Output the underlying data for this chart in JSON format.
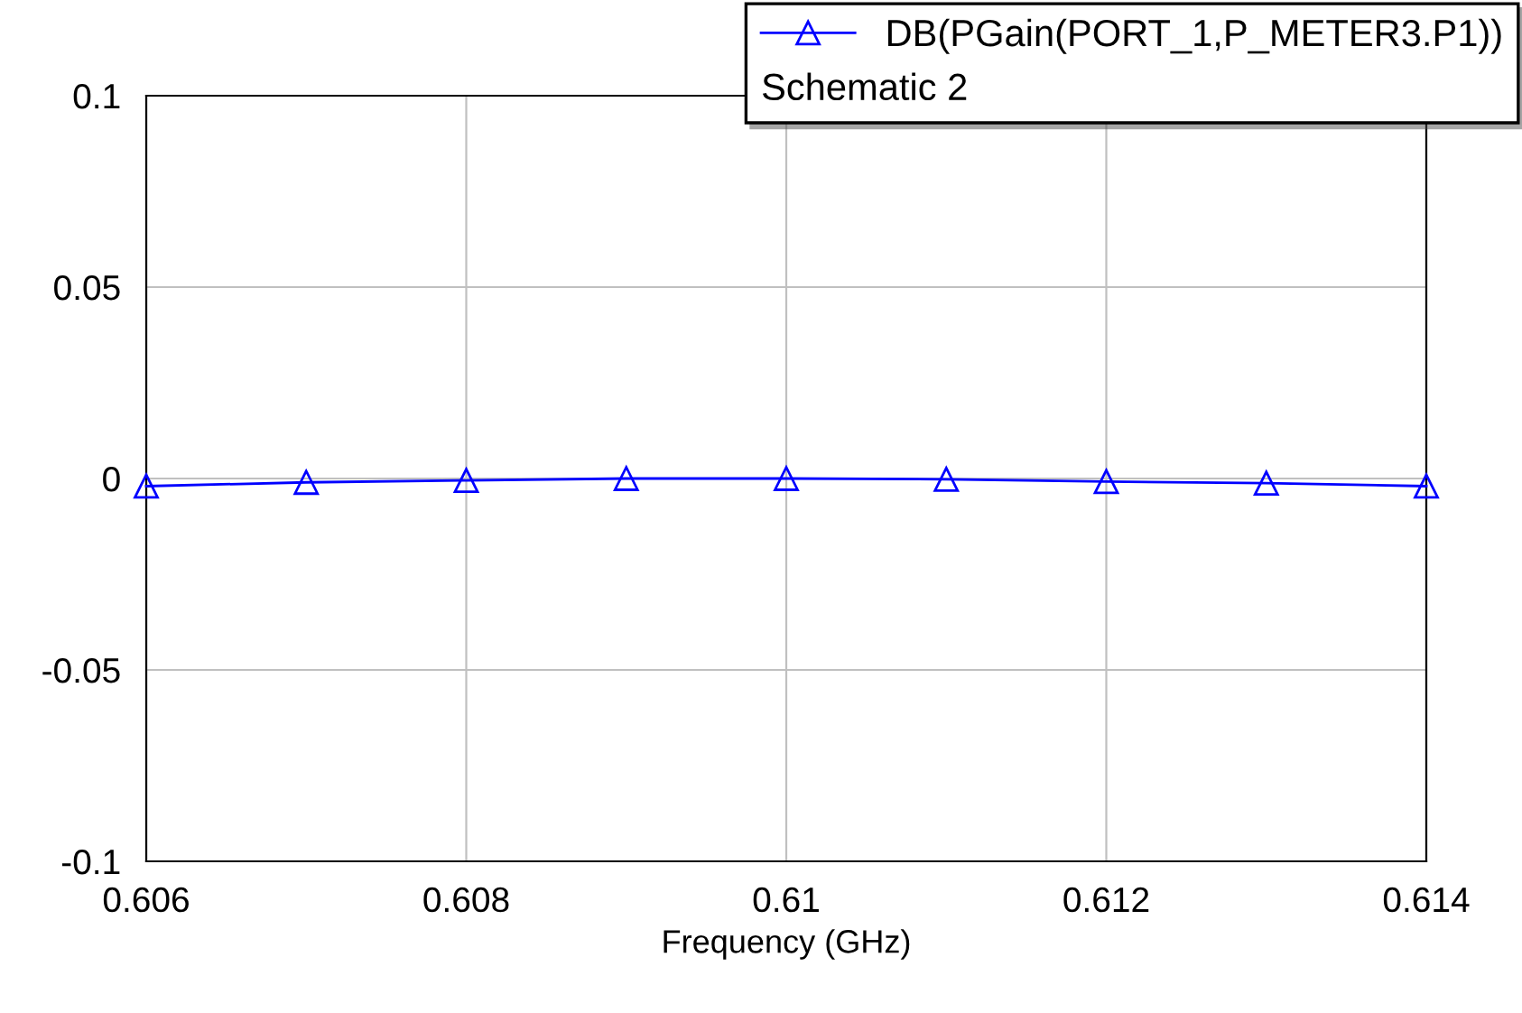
{
  "chart_data": {
    "type": "line",
    "xlabel": "Frequency (GHz)",
    "legend_title": "Schematic 2",
    "x": [
      0.606,
      0.607,
      0.608,
      0.609,
      0.61,
      0.611,
      0.612,
      0.613,
      0.614
    ],
    "series": [
      {
        "name": "DB(PGain(PORT_1,P_METER3.P1))",
        "color": "#0000ff",
        "values": [
          -0.002,
          -0.001,
          -0.0005,
          0,
          0,
          -0.0002,
          -0.0008,
          -0.0012,
          -0.002
        ]
      }
    ],
    "xlim": [
      0.606,
      0.614
    ],
    "xticks": [
      0.606,
      0.608,
      0.61,
      0.612,
      0.614
    ],
    "ylim": [
      -0.1,
      0.1
    ],
    "yticks": [
      -0.1,
      -0.05,
      0,
      0.05,
      0.1
    ],
    "grid": true,
    "legend": "top right",
    "marker": "triangle",
    "line_style": "solid"
  }
}
